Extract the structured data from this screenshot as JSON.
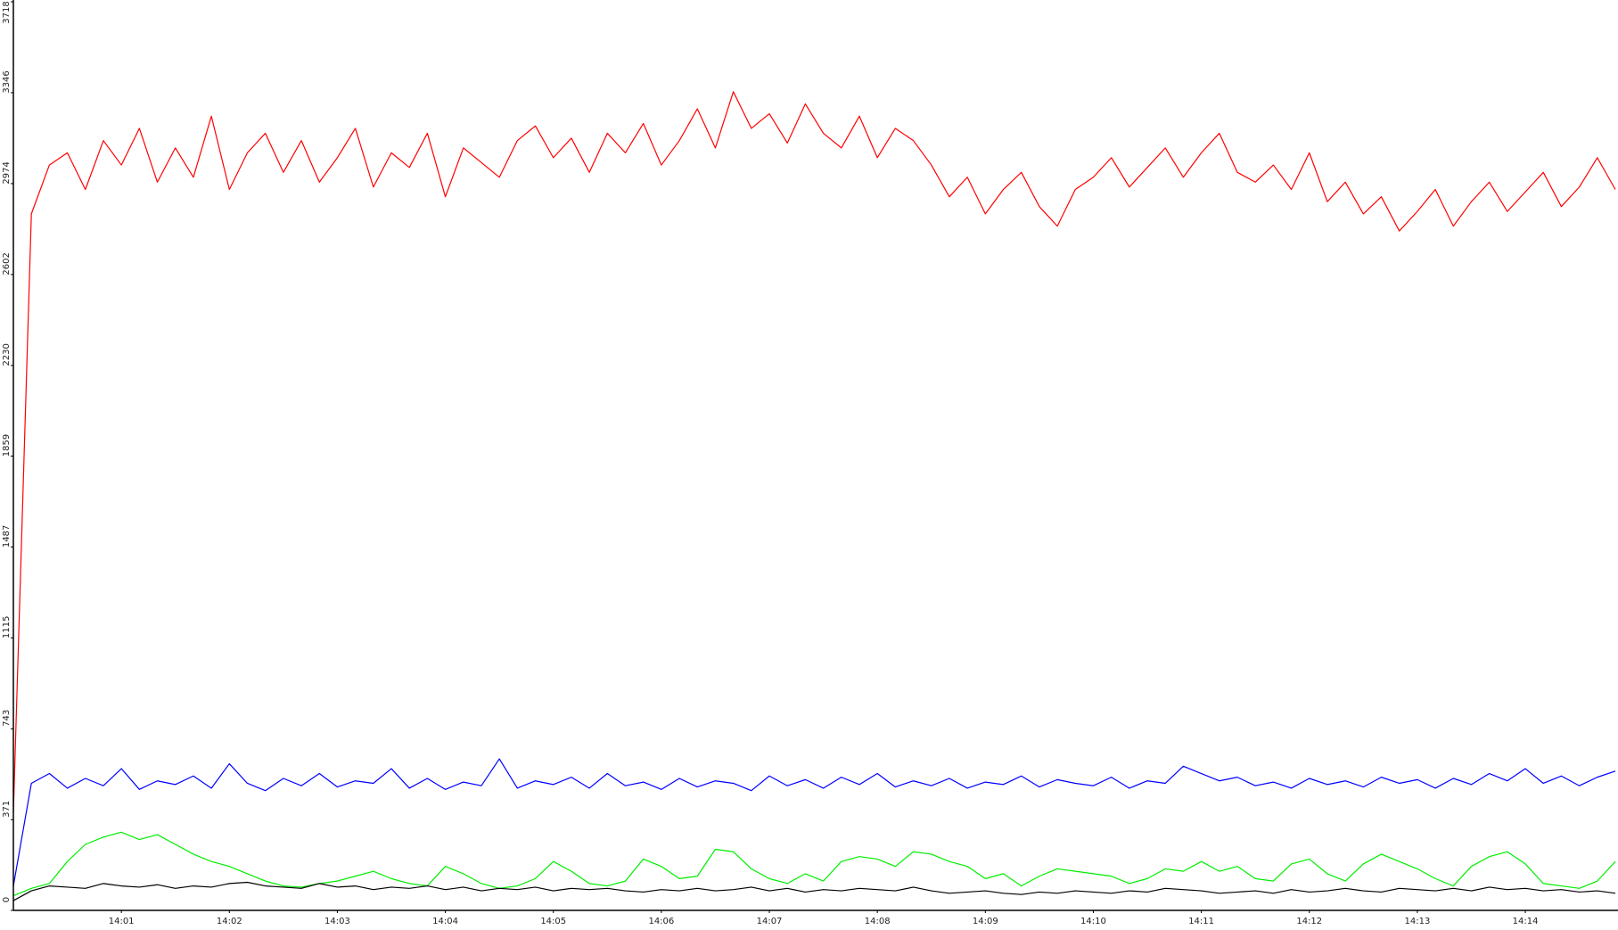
{
  "chart_data": {
    "type": "line",
    "categories": [
      null,
      null,
      null,
      null,
      null,
      null,
      "14:01",
      null,
      null,
      null,
      null,
      null,
      "14:02",
      null,
      null,
      null,
      null,
      null,
      "14:03",
      null,
      null,
      null,
      null,
      null,
      "14:04",
      null,
      null,
      null,
      null,
      null,
      "14:05",
      null,
      null,
      null,
      null,
      null,
      "14:06",
      null,
      null,
      null,
      null,
      null,
      "14:07",
      null,
      null,
      null,
      null,
      null,
      "14:08",
      null,
      null,
      null,
      null,
      null,
      "14:09",
      null,
      null,
      null,
      null,
      null,
      "14:10",
      null,
      null,
      null,
      null,
      null,
      "14:11",
      null,
      null,
      null,
      null,
      null,
      "14:12",
      null,
      null,
      null,
      null,
      null,
      "14:13",
      null,
      null,
      null,
      null,
      null,
      "14:14",
      null,
      null,
      null,
      null,
      null
    ],
    "ylim": [
      0,
      3718
    ],
    "yticks": [
      0,
      371,
      743,
      1115,
      1487,
      1859,
      2230,
      2602,
      2974,
      3346,
      3718
    ],
    "series": [
      {
        "color": "#ff0000",
        "values": [
          400,
          2850,
          3050,
          3100,
          2950,
          3150,
          3050,
          3200,
          2980,
          3120,
          3000,
          3250,
          2950,
          3100,
          3180,
          3020,
          3150,
          2980,
          3080,
          3200,
          2960,
          3100,
          3040,
          3180,
          2920,
          3120,
          3060,
          3000,
          3150,
          3210,
          3080,
          3160,
          3020,
          3180,
          3100,
          3220,
          3050,
          3150,
          3280,
          3120,
          3350,
          3200,
          3260,
          3140,
          3300,
          3180,
          3120,
          3250,
          3080,
          3200,
          3150,
          3050,
          2920,
          3000,
          2850,
          2950,
          3020,
          2880,
          2800,
          2950,
          3000,
          3080,
          2960,
          3040,
          3120,
          3000,
          3100,
          3180,
          3020,
          2980,
          3050,
          2950,
          3100,
          2900,
          2980,
          2850,
          2920,
          2780,
          2860,
          2950,
          2800,
          2900,
          2980,
          2860,
          2940,
          3020,
          2880,
          2960,
          3080,
          2950
        ]
      },
      {
        "color": "#0000ff",
        "values": [
          100,
          520,
          560,
          500,
          540,
          510,
          580,
          495,
          530,
          515,
          550,
          500,
          600,
          520,
          490,
          540,
          510,
          560,
          505,
          530,
          520,
          580,
          500,
          540,
          495,
          525,
          510,
          620,
          500,
          530,
          515,
          545,
          500,
          560,
          510,
          525,
          495,
          540,
          505,
          530,
          520,
          490,
          550,
          510,
          535,
          500,
          545,
          515,
          560,
          505,
          530,
          510,
          540,
          500,
          525,
          515,
          550,
          505,
          535,
          520,
          510,
          545,
          500,
          530,
          520,
          590,
          560,
          530,
          545,
          510,
          525,
          500,
          540,
          515,
          530,
          505,
          545,
          520,
          535,
          500,
          540,
          515,
          560,
          530,
          580,
          520,
          550,
          510,
          545,
          570
        ]
      },
      {
        "color": "#00ee00",
        "values": [
          60,
          90,
          110,
          200,
          270,
          300,
          320,
          290,
          310,
          270,
          230,
          200,
          180,
          150,
          120,
          100,
          95,
          110,
          120,
          140,
          160,
          130,
          110,
          100,
          180,
          150,
          110,
          90,
          100,
          130,
          200,
          160,
          110,
          100,
          120,
          210,
          180,
          130,
          140,
          250,
          240,
          170,
          130,
          110,
          150,
          120,
          200,
          220,
          210,
          180,
          240,
          230,
          200,
          180,
          130,
          150,
          100,
          140,
          170,
          160,
          150,
          140,
          110,
          130,
          170,
          160,
          200,
          160,
          180,
          130,
          120,
          190,
          210,
          150,
          120,
          190,
          230,
          200,
          170,
          130,
          100,
          180,
          220,
          240,
          190,
          110,
          100,
          90,
          120,
          200
        ]
      },
      {
        "color": "#000000",
        "values": [
          40,
          80,
          100,
          95,
          90,
          110,
          100,
          95,
          105,
          90,
          100,
          95,
          110,
          115,
          100,
          95,
          90,
          110,
          95,
          100,
          85,
          95,
          90,
          100,
          85,
          95,
          80,
          90,
          85,
          95,
          80,
          90,
          85,
          90,
          80,
          75,
          85,
          80,
          90,
          80,
          85,
          95,
          80,
          90,
          75,
          85,
          80,
          90,
          85,
          80,
          95,
          80,
          70,
          75,
          80,
          70,
          65,
          75,
          70,
          80,
          75,
          70,
          80,
          75,
          90,
          85,
          80,
          70,
          75,
          80,
          70,
          85,
          75,
          80,
          90,
          80,
          75,
          90,
          85,
          80,
          90,
          80,
          95,
          85,
          90,
          80,
          85,
          75,
          80,
          70
        ]
      }
    ]
  }
}
